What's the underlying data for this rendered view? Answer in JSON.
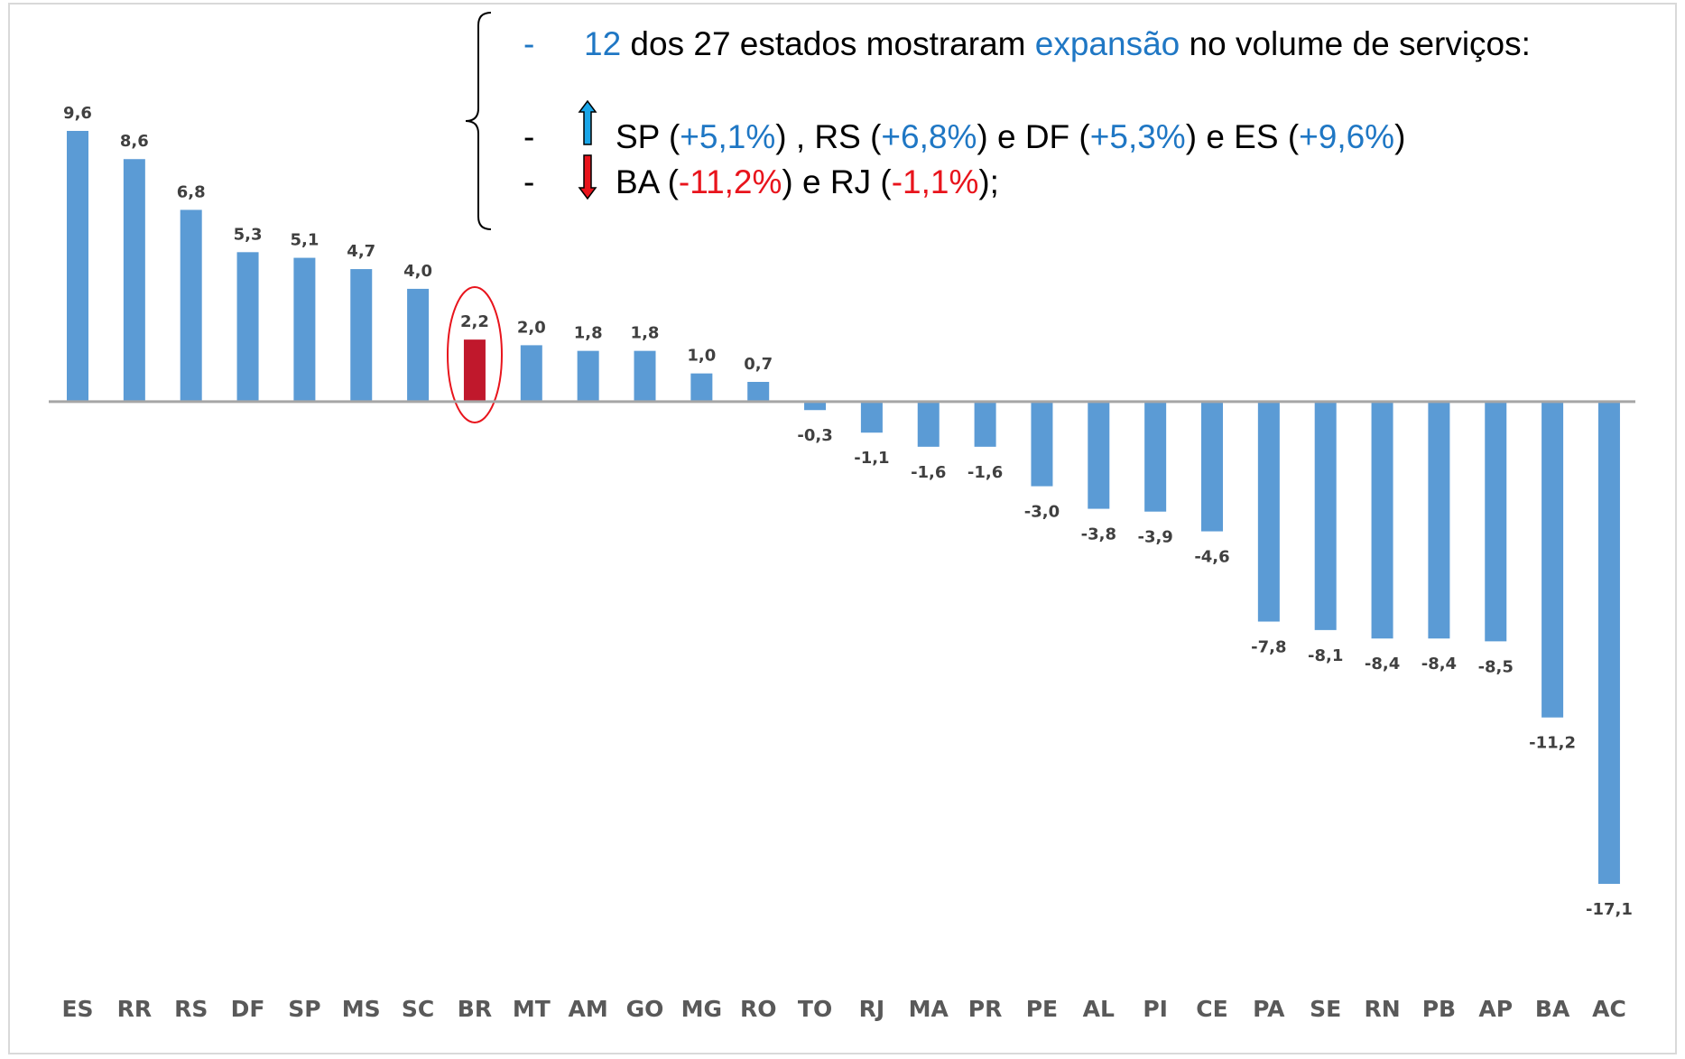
{
  "chart_data": {
    "type": "bar",
    "categories": [
      "ES",
      "RR",
      "RS",
      "DF",
      "SP",
      "MS",
      "SC",
      "BR",
      "MT",
      "AM",
      "GO",
      "MG",
      "RO",
      "TO",
      "RJ",
      "MA",
      "PR",
      "PE",
      "AL",
      "PI",
      "CE",
      "PA",
      "SE",
      "RN",
      "PB",
      "AP",
      "BA",
      "AC"
    ],
    "values": [
      9.6,
      8.6,
      6.8,
      5.3,
      5.1,
      4.7,
      4.0,
      2.2,
      2.0,
      1.8,
      1.8,
      1.0,
      0.7,
      -0.3,
      -1.1,
      -1.6,
      -1.6,
      -3.0,
      -3.8,
      -3.9,
      -4.6,
      -7.8,
      -8.1,
      -8.4,
      -8.4,
      -8.5,
      -11.2,
      -17.1
    ],
    "value_labels": [
      "9,6",
      "8,6",
      "6,8",
      "5,3",
      "5,1",
      "4,7",
      "4,0",
      "2,2",
      "2,0",
      "1,8",
      "1,8",
      "1,0",
      "0,7",
      "-0,3",
      "-1,1",
      "-1,6",
      "-1,6",
      "-3,0",
      "-3,8",
      "-3,9",
      "-4,6",
      "-7,8",
      "-8,1",
      "-8,4",
      "-8,4",
      "-8,5",
      "-11,2",
      "-17,1"
    ],
    "colors": [
      "#5b9bd5",
      "#5b9bd5",
      "#5b9bd5",
      "#5b9bd5",
      "#5b9bd5",
      "#5b9bd5",
      "#5b9bd5",
      "#c0182c",
      "#5b9bd5",
      "#5b9bd5",
      "#5b9bd5",
      "#5b9bd5",
      "#5b9bd5",
      "#5b9bd5",
      "#5b9bd5",
      "#5b9bd5",
      "#5b9bd5",
      "#5b9bd5",
      "#5b9bd5",
      "#5b9bd5",
      "#5b9bd5",
      "#5b9bd5",
      "#5b9bd5",
      "#5b9bd5",
      "#5b9bd5",
      "#5b9bd5",
      "#5b9bd5",
      "#5b9bd5"
    ],
    "annotations": [
      [
        {
          "text": "-",
          "color": "#1f77c4"
        },
        {
          "text": "12",
          "color": "#1f77c4"
        },
        {
          "text": " dos 27 estados mostraram ",
          "color": "#000000"
        },
        {
          "text": "expansão",
          "color": "#1f77c4"
        },
        {
          "text": " no volume de serviços:",
          "color": "#000000"
        }
      ],
      [
        {
          "text": "-",
          "color": "#000000"
        },
        {
          "text": "SP (",
          "color": "#000000"
        },
        {
          "text": "+5,1%",
          "color": "#1f77c4"
        },
        {
          "text": ") , RS (",
          "color": "#000000"
        },
        {
          "text": "+6,8%",
          "color": "#1f77c4"
        },
        {
          "text": ") e DF (",
          "color": "#000000"
        },
        {
          "text": "+5,3%",
          "color": "#1f77c4"
        },
        {
          "text": ") e ES (",
          "color": "#000000"
        },
        {
          "text": "+9,6%",
          "color": "#1f77c4"
        },
        {
          "text": ")",
          "color": "#000000"
        }
      ],
      [
        {
          "text": "-",
          "color": "#000000"
        },
        {
          "text": "BA (",
          "color": "#000000"
        },
        {
          "text": "-11,2%",
          "color": "#e8141c"
        },
        {
          "text": ") e RJ (",
          "color": "#000000"
        },
        {
          "text": "-1,1%",
          "color": "#e8141c"
        },
        {
          "text": ");",
          "color": "#000000"
        }
      ]
    ]
  }
}
